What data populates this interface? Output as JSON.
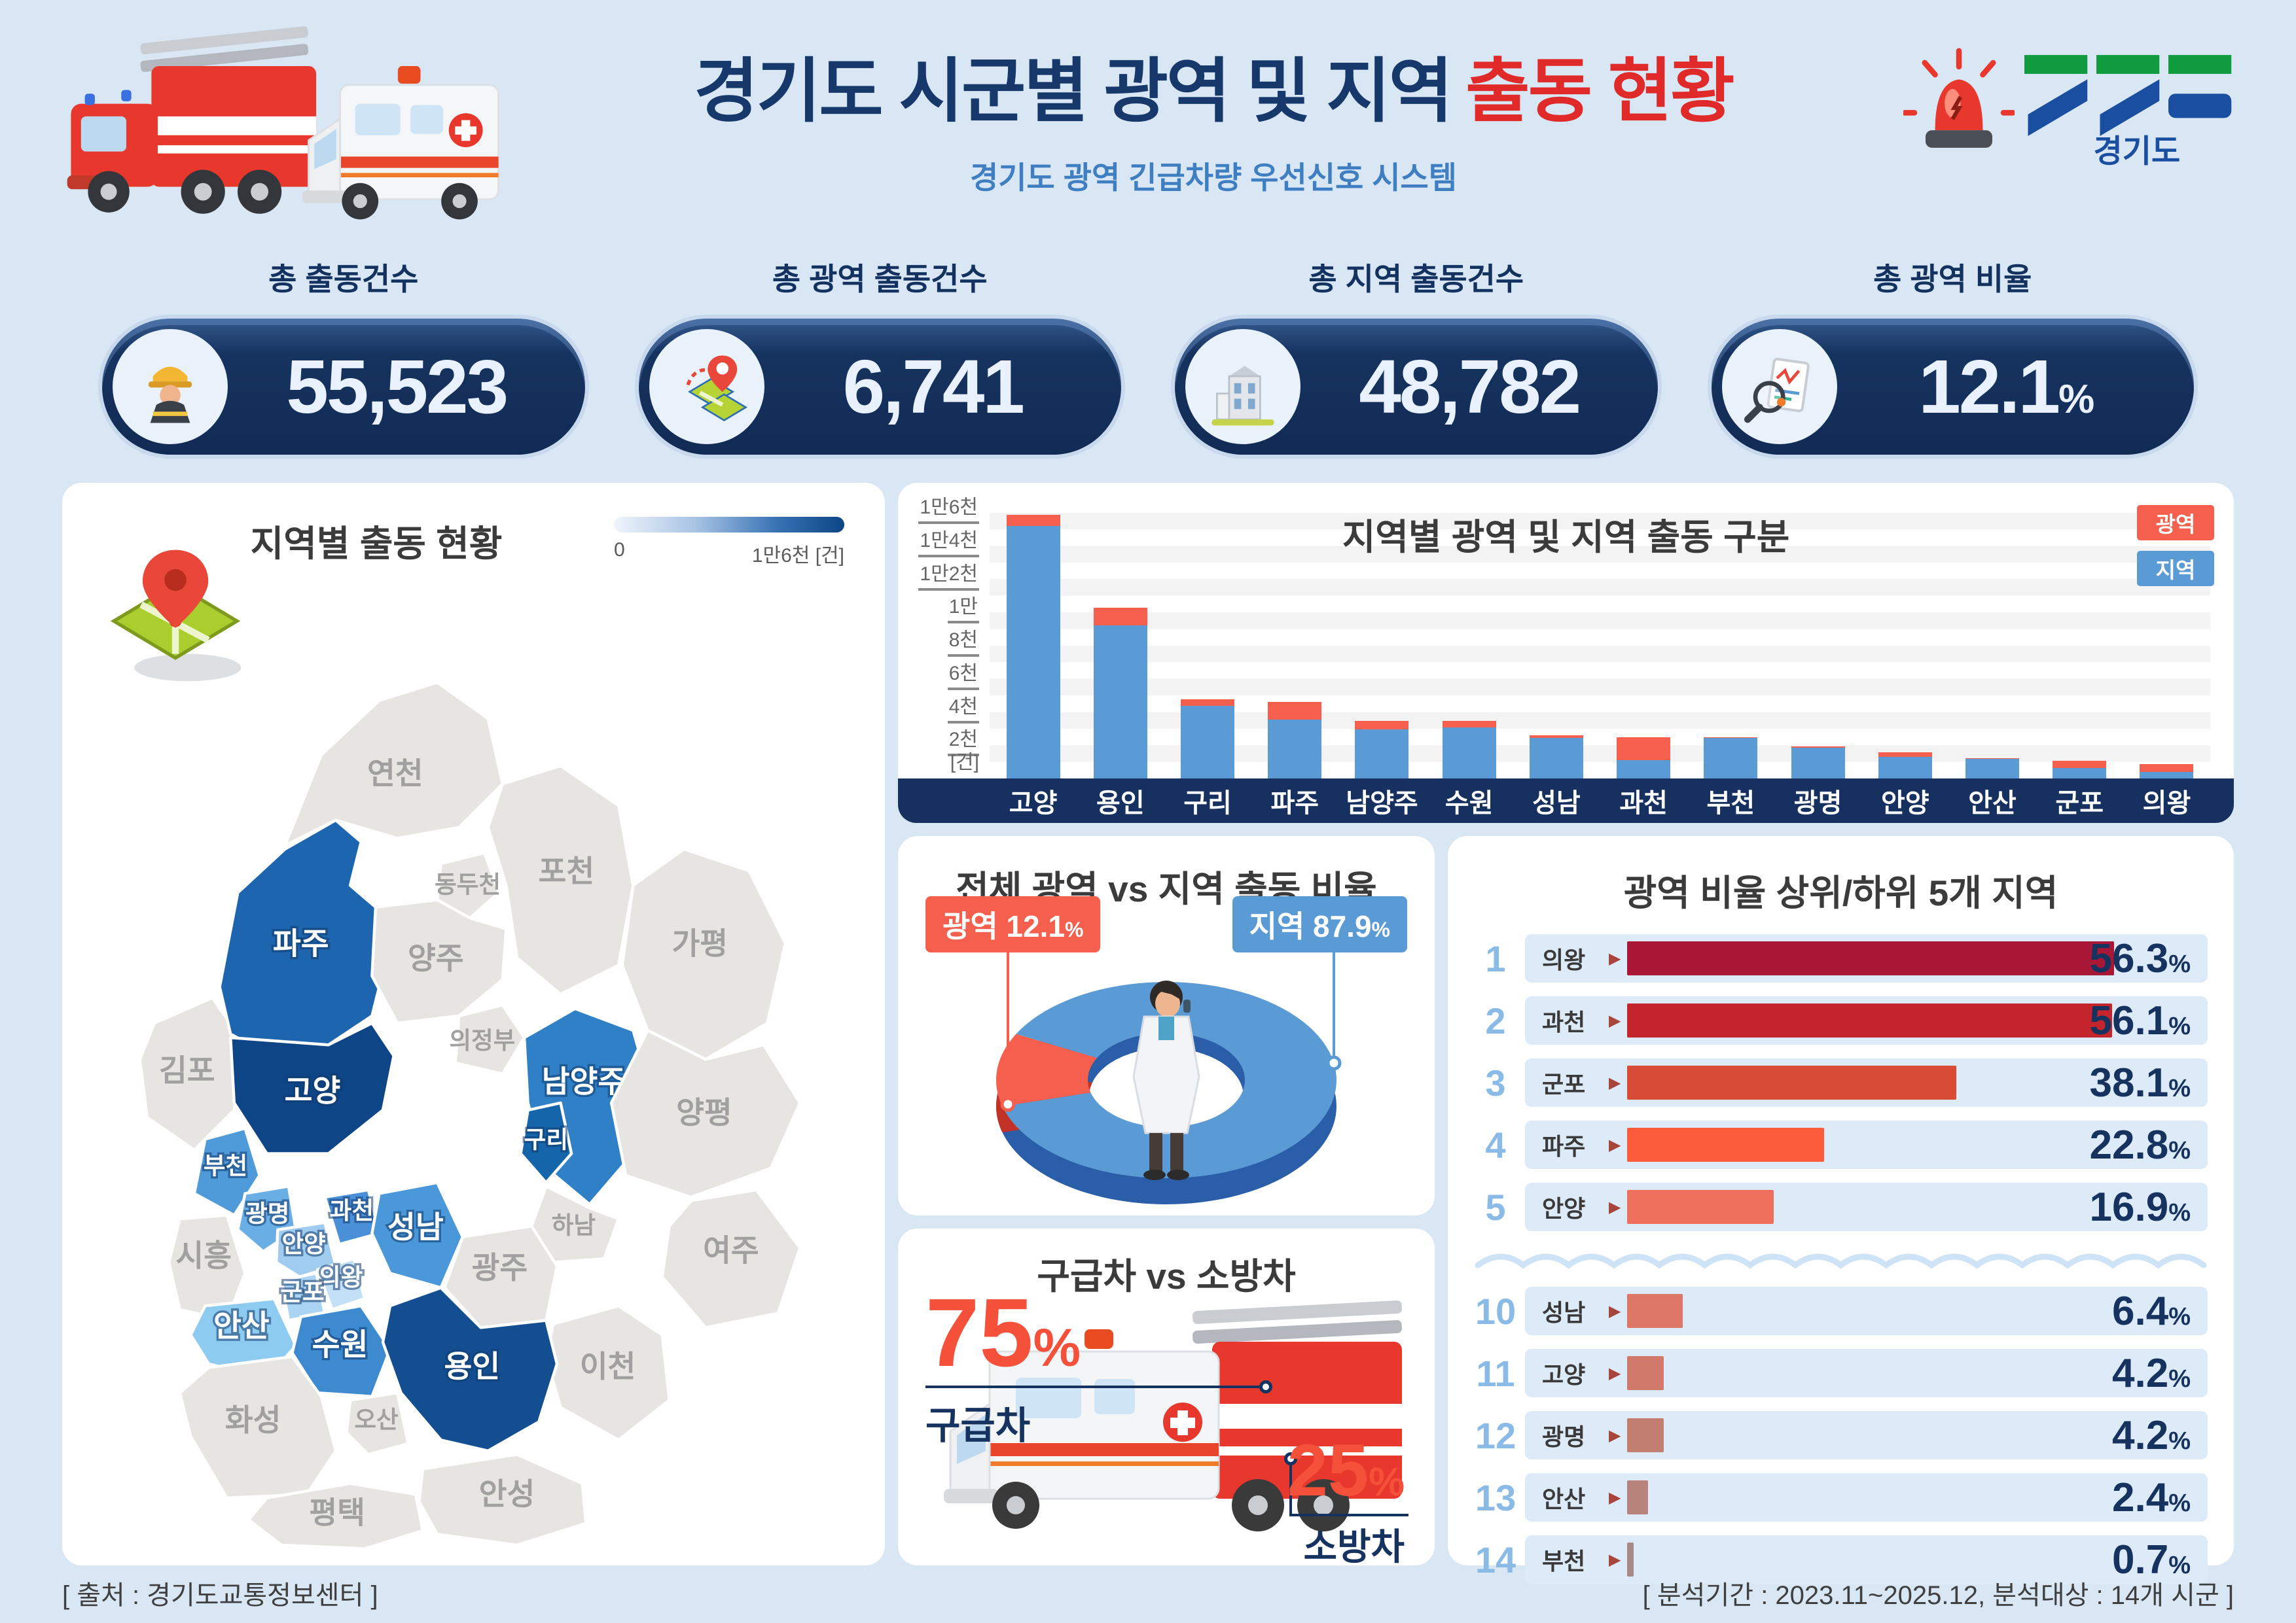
{
  "header": {
    "title_main": "경기도 시군별 광역 및 지역",
    "title_accent": "출동 현황",
    "subtitle": "경기도 광역 긴급차량 우선신호 시스템",
    "logo_text": "경기도"
  },
  "stats": [
    {
      "label": "총 출동건수",
      "value": "55,523",
      "unit": "",
      "icon": "firefighter-icon"
    },
    {
      "label": "총 광역 출동건수",
      "value": "6,741",
      "unit": "",
      "icon": "map-route-icon"
    },
    {
      "label": "총 지역 출동건수",
      "value": "48,782",
      "unit": "",
      "icon": "building-icon"
    },
    {
      "label": "총 광역 비율",
      "value": "12.1",
      "unit": "%",
      "icon": "magnifier-chart-icon"
    }
  ],
  "map_panel": {
    "title": "지역별 출동 현황",
    "legend_min": "0",
    "legend_max": "1만6천 [건]",
    "regions": [
      {
        "name": "김포",
        "fill": "#e7e5e1",
        "label": "muted"
      },
      {
        "name": "파주",
        "fill": "#1e65b0",
        "label": "light"
      },
      {
        "name": "연천",
        "fill": "#e7e5e1",
        "label": "muted"
      },
      {
        "name": "포천",
        "fill": "#e7e5e1",
        "label": "muted"
      },
      {
        "name": "동두천",
        "fill": "#e7e5e1",
        "label": "muted"
      },
      {
        "name": "양주",
        "fill": "#e7e5e1",
        "label": "muted"
      },
      {
        "name": "가평",
        "fill": "#e7e5e1",
        "label": "muted"
      },
      {
        "name": "의정부",
        "fill": "#e7e5e1",
        "label": "muted"
      },
      {
        "name": "남양주",
        "fill": "#2f80c6",
        "label": "light"
      },
      {
        "name": "고양",
        "fill": "#0d4586",
        "label": "light"
      },
      {
        "name": "구리",
        "fill": "#1565aa",
        "label": "light"
      },
      {
        "name": "하남",
        "fill": "#e7e5e1",
        "label": "muted"
      },
      {
        "name": "부천",
        "fill": "#4f9ad8",
        "label": "light"
      },
      {
        "name": "광명",
        "fill": "#6aaee6",
        "label": "light"
      },
      {
        "name": "시흥",
        "fill": "#e7e5e1",
        "label": "muted"
      },
      {
        "name": "안양",
        "fill": "#9fccef",
        "label": "light"
      },
      {
        "name": "과천",
        "fill": "#4a90d9",
        "label": "light"
      },
      {
        "name": "성남",
        "fill": "#4a97da",
        "label": "light"
      },
      {
        "name": "의왕",
        "fill": "#c3e0f7",
        "label": "light"
      },
      {
        "name": "군포",
        "fill": "#abd4f2",
        "label": "light"
      },
      {
        "name": "안산",
        "fill": "#8ecbf0",
        "label": "light"
      },
      {
        "name": "수원",
        "fill": "#3d8ad0",
        "label": "light"
      },
      {
        "name": "광주",
        "fill": "#e7e5e1",
        "label": "muted"
      },
      {
        "name": "양평",
        "fill": "#e7e5e1",
        "label": "muted"
      },
      {
        "name": "여주",
        "fill": "#e7e5e1",
        "label": "muted"
      },
      {
        "name": "이천",
        "fill": "#e7e5e1",
        "label": "muted"
      },
      {
        "name": "용인",
        "fill": "#134f90",
        "label": "light"
      },
      {
        "name": "화성",
        "fill": "#e7e5e1",
        "label": "muted"
      },
      {
        "name": "오산",
        "fill": "#e7e5e1",
        "label": "muted"
      },
      {
        "name": "평택",
        "fill": "#e7e5e1",
        "label": "muted"
      },
      {
        "name": "안성",
        "fill": "#e7e5e1",
        "label": "muted"
      }
    ]
  },
  "bar_panel": {
    "title": "지역별 광역 및 지역 출동 구분",
    "legend": [
      {
        "label": "광역",
        "color": "#f4604d"
      },
      {
        "label": "지역",
        "color": "#5b9bd5"
      }
    ]
  },
  "donut_panel": {
    "title": "전체 광역 vs 지역 출동 비율",
    "metro": {
      "name": "광역",
      "pct": "12.1"
    },
    "local": {
      "name": "지역",
      "pct": "87.9"
    },
    "unit": "%"
  },
  "vehicle_panel": {
    "title": "구급차 vs 소방차",
    "ambulance": {
      "pct": "75",
      "label": "구급차"
    },
    "firetruck": {
      "pct": "25",
      "label": "소방차"
    },
    "unit": "%"
  },
  "ranking_panel": {
    "title": "광역 비율 상위/하위 5개 지역",
    "unit": "%"
  },
  "footer": {
    "source": "[ 출처 : 경기도교통정보센터 ]",
    "period": "[ 분석기간 : 2023.11~2025.12, 분석대상 : 14개 시군 ]"
  },
  "chart_data": [
    {
      "id": "dispatch-by-city",
      "type": "bar",
      "stacked": true,
      "title": "지역별 광역 및 지역 출동 구분",
      "categories": [
        "고양",
        "용인",
        "구리",
        "파주",
        "남양주",
        "수원",
        "성남",
        "과천",
        "부천",
        "광명",
        "안양",
        "안산",
        "군포",
        "의왕"
      ],
      "series": [
        {
          "name": "지역",
          "color": "#5b9bd5",
          "values": [
            15230,
            9230,
            4380,
            3550,
            2950,
            3060,
            2430,
            1100,
            2460,
            1870,
            1300,
            1190,
            650,
            385
          ]
        },
        {
          "name": "광역",
          "color": "#f4604d",
          "values": [
            670,
            1060,
            385,
            1050,
            520,
            390,
            165,
            1400,
            20,
            80,
            265,
            30,
            400,
            495
          ]
        }
      ],
      "xlabel": "",
      "ylabel": "[건]",
      "ylim": [
        0,
        16000
      ],
      "y_ticks": [
        "1만6천",
        "1만4천",
        "1만2천",
        "1만",
        "8천",
        "6천",
        "4천",
        "2천"
      ],
      "grid": true,
      "legend_position": "top-right"
    },
    {
      "id": "metro-vs-local-ratio",
      "type": "pie",
      "title": "전체 광역 vs 지역 출동 비율",
      "labels": [
        "광역",
        "지역"
      ],
      "values": [
        12.1,
        87.9
      ],
      "unit": "%",
      "colors": [
        "#f4604d",
        "#5b9bd5"
      ]
    },
    {
      "id": "ambulance-vs-firetruck",
      "type": "pie",
      "title": "구급차 vs 소방차",
      "labels": [
        "구급차",
        "소방차"
      ],
      "values": [
        75,
        25
      ],
      "unit": "%"
    },
    {
      "id": "metro-ratio-ranking",
      "type": "bar",
      "title": "광역 비율 상위/하위 5개 지역",
      "unit": "%",
      "top": [
        {
          "rank": 1,
          "name": "의왕",
          "value": 56.3,
          "color": "#a81735"
        },
        {
          "rank": 2,
          "name": "과천",
          "value": 56.1,
          "color": "#c4242c"
        },
        {
          "rank": 3,
          "name": "군포",
          "value": 38.1,
          "color": "#d84b34"
        },
        {
          "rank": 4,
          "name": "파주",
          "value": 22.8,
          "color": "#fa5b3a"
        },
        {
          "rank": 5,
          "name": "안양",
          "value": 16.9,
          "color": "#ef6f5d"
        }
      ],
      "bottom": [
        {
          "rank": 10,
          "name": "성남",
          "value": 6.4,
          "color": "#dc7767"
        },
        {
          "rank": 11,
          "name": "고양",
          "value": 4.2,
          "color": "#d1796a"
        },
        {
          "rank": 12,
          "name": "광명",
          "value": 4.2,
          "color": "#c27e71"
        },
        {
          "rank": 13,
          "name": "안산",
          "value": 2.4,
          "color": "#b8837a"
        },
        {
          "rank": 14,
          "name": "부천",
          "value": 0.7,
          "color": "#a98983"
        }
      ]
    }
  ]
}
